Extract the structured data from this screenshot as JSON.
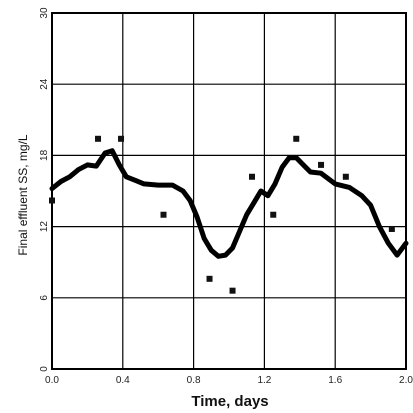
{
  "chart_data": {
    "type": "scatter",
    "title": "",
    "xlabel": "Time, days",
    "ylabel": "Final effluent SS, mg/L",
    "xlim": [
      0,
      2.0
    ],
    "ylim": [
      0,
      30
    ],
    "x_ticks": [
      0.0,
      0.4,
      0.8,
      1.2,
      1.6,
      2.0
    ],
    "x_tick_labels": [
      "0.0",
      "0.4",
      "0.8",
      "1.2",
      "1.6",
      "2.0"
    ],
    "y_ticks": [
      0,
      6,
      12,
      18,
      24,
      30
    ],
    "y_tick_labels": [
      "0",
      "6",
      "12",
      "18",
      "24",
      "30"
    ],
    "grid": true,
    "legend": "none",
    "series": [
      {
        "kind": "points",
        "marker": "square",
        "color": "#111111",
        "x": [
          0.0,
          0.26,
          0.39,
          0.63,
          0.89,
          1.02,
          1.13,
          1.25,
          1.38,
          1.52,
          1.66,
          1.92
        ],
        "y": [
          14.2,
          19.4,
          19.4,
          13.0,
          7.6,
          6.6,
          16.2,
          13.0,
          19.4,
          17.2,
          16.2,
          11.8
        ]
      },
      {
        "kind": "line",
        "color": "#000000",
        "x": [
          0.0,
          0.05,
          0.1,
          0.15,
          0.2,
          0.25,
          0.3,
          0.34,
          0.38,
          0.42,
          0.47,
          0.52,
          0.6,
          0.68,
          0.74,
          0.78,
          0.82,
          0.86,
          0.9,
          0.94,
          0.98,
          1.02,
          1.06,
          1.1,
          1.14,
          1.18,
          1.22,
          1.26,
          1.3,
          1.34,
          1.38,
          1.42,
          1.46,
          1.52,
          1.6,
          1.68,
          1.75,
          1.8,
          1.85,
          1.9,
          1.95,
          2.0
        ],
        "y": [
          15.2,
          15.8,
          16.2,
          16.8,
          17.2,
          17.1,
          18.2,
          18.4,
          17.2,
          16.2,
          15.9,
          15.6,
          15.5,
          15.5,
          15.0,
          14.2,
          12.8,
          11.0,
          10.0,
          9.5,
          9.6,
          10.2,
          11.6,
          13.0,
          14.0,
          15.0,
          14.6,
          15.6,
          17.0,
          17.8,
          17.8,
          17.2,
          16.6,
          16.5,
          15.6,
          15.3,
          14.6,
          13.8,
          12.0,
          10.6,
          9.6,
          10.6
        ]
      }
    ]
  }
}
